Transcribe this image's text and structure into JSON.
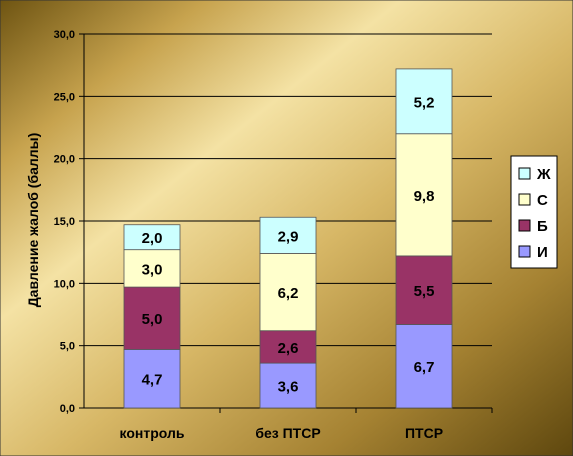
{
  "chart_data": {
    "type": "bar",
    "stacked": true,
    "categories": [
      "контроль",
      "без ПТСР",
      "ПТСР"
    ],
    "series": [
      {
        "name": "И",
        "values": [
          4.7,
          3.6,
          6.7
        ],
        "labels": [
          "4,7",
          "3,6",
          "6,7"
        ],
        "color": "#9999FF"
      },
      {
        "name": "Б",
        "values": [
          5.0,
          2.6,
          5.5
        ],
        "labels": [
          "5,0",
          "2,6",
          "5,5"
        ],
        "color": "#993366"
      },
      {
        "name": "С",
        "values": [
          3.0,
          6.2,
          9.8
        ],
        "labels": [
          "3,0",
          "6,2",
          "9,8"
        ],
        "color": "#FFFFCC"
      },
      {
        "name": "Ж",
        "values": [
          2.0,
          2.9,
          5.2
        ],
        "labels": [
          "2,0",
          "2,9",
          "5,2"
        ],
        "color": "#CCFFFF"
      }
    ],
    "ylabel": "Давление жалоб (баллы)",
    "xlabel": "",
    "ylim": [
      0,
      30
    ],
    "yticks": [
      0,
      5,
      10,
      15,
      20,
      25,
      30
    ],
    "ytick_labels": [
      "0,0",
      "5,0",
      "10,0",
      "15,0",
      "20,0",
      "25,0",
      "30,0"
    ],
    "grid": true,
    "legend": "right",
    "legend_order": [
      "Ж",
      "С",
      "Б",
      "И"
    ]
  }
}
